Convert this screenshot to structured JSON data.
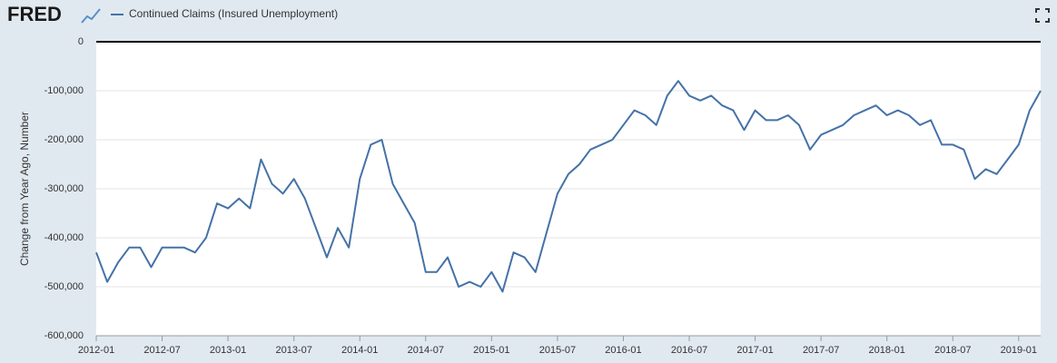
{
  "logo": "FRED",
  "chart_data": {
    "type": "line",
    "y_label": "Change from Year Ago, Number",
    "x": [
      "2012-01",
      "2012-02",
      "2012-03",
      "2012-04",
      "2012-05",
      "2012-06",
      "2012-07",
      "2012-08",
      "2012-09",
      "2012-10",
      "2012-11",
      "2012-12",
      "2013-01",
      "2013-02",
      "2013-03",
      "2013-04",
      "2013-05",
      "2013-06",
      "2013-07",
      "2013-08",
      "2013-09",
      "2013-10",
      "2013-11",
      "2013-12",
      "2014-01",
      "2014-02",
      "2014-03",
      "2014-04",
      "2014-05",
      "2014-06",
      "2014-07",
      "2014-08",
      "2014-09",
      "2014-10",
      "2014-11",
      "2014-12",
      "2015-01",
      "2015-02",
      "2015-03",
      "2015-04",
      "2015-05",
      "2015-06",
      "2015-07",
      "2015-08",
      "2015-09",
      "2015-10",
      "2015-11",
      "2015-12",
      "2016-01",
      "2016-02",
      "2016-03",
      "2016-04",
      "2016-05",
      "2016-06",
      "2016-07",
      "2016-08",
      "2016-09",
      "2016-10",
      "2016-11",
      "2016-12",
      "2017-01",
      "2017-02",
      "2017-03",
      "2017-04",
      "2017-05",
      "2017-06",
      "2017-07",
      "2017-08",
      "2017-09",
      "2017-10",
      "2017-11",
      "2017-12",
      "2018-01",
      "2018-02",
      "2018-03",
      "2018-04",
      "2018-05",
      "2018-06",
      "2018-07",
      "2018-08",
      "2018-09",
      "2018-10",
      "2018-11",
      "2018-12",
      "2019-01",
      "2019-02",
      "2019-03"
    ],
    "series": [
      {
        "name": "Continued Claims (Insured Unemployment)",
        "color": "#4572a7",
        "values": [
          -430000,
          -490000,
          -450000,
          -420000,
          -420000,
          -460000,
          -420000,
          -420000,
          -420000,
          -430000,
          -400000,
          -330000,
          -340000,
          -320000,
          -340000,
          -240000,
          -290000,
          -310000,
          -280000,
          -320000,
          -380000,
          -440000,
          -380000,
          -420000,
          -280000,
          -210000,
          -200000,
          -290000,
          -330000,
          -370000,
          -470000,
          -470000,
          -440000,
          -500000,
          -490000,
          -500000,
          -470000,
          -510000,
          -430000,
          -440000,
          -470000,
          -390000,
          -310000,
          -270000,
          -250000,
          -220000,
          -210000,
          -200000,
          -170000,
          -140000,
          -150000,
          -170000,
          -110000,
          -80000,
          -110000,
          -120000,
          -110000,
          -130000,
          -140000,
          -180000,
          -140000,
          -160000,
          -160000,
          -150000,
          -170000,
          -220000,
          -190000,
          -180000,
          -170000,
          -150000,
          -140000,
          -130000,
          -150000,
          -140000,
          -150000,
          -170000,
          -160000,
          -210000,
          -210000,
          -220000,
          -280000,
          -260000,
          -270000,
          -240000,
          -210000,
          -140000,
          -100000
        ]
      }
    ],
    "xlim": [
      "2012-01",
      "2019-03"
    ],
    "xticks": [
      "2012-01",
      "2012-07",
      "2013-01",
      "2013-07",
      "2014-01",
      "2014-07",
      "2015-01",
      "2015-07",
      "2016-01",
      "2016-07",
      "2017-01",
      "2017-07",
      "2018-01",
      "2018-07",
      "2019-01"
    ],
    "ylim": [
      -600000,
      0
    ],
    "yticks": [
      {
        "value": -600000,
        "label": "-600,000"
      },
      {
        "value": -500000,
        "label": "-500,000"
      },
      {
        "value": -400000,
        "label": "-400,000"
      },
      {
        "value": -300000,
        "label": "-300,000"
      },
      {
        "value": -200000,
        "label": "-200,000"
      },
      {
        "value": -100000,
        "label": "-100,000"
      },
      0
    ],
    "grid": true
  }
}
